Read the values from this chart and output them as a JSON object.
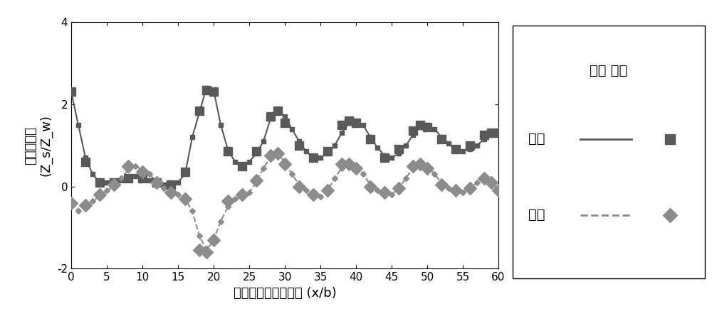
{
  "real_theory_x": [
    0,
    1,
    2,
    3,
    4,
    5,
    6,
    7,
    8,
    9,
    10,
    11,
    12,
    13,
    14,
    15,
    16,
    17,
    18,
    19,
    20,
    21,
    22,
    23,
    24,
    25,
    26,
    27,
    28,
    29,
    30,
    31,
    32,
    33,
    34,
    35,
    36,
    37,
    38,
    39,
    40,
    41,
    42,
    43,
    44,
    45,
    46,
    47,
    48,
    49,
    50,
    51,
    52,
    53,
    54,
    55,
    56,
    57,
    58,
    59,
    60
  ],
  "real_theory_y": [
    2.3,
    1.5,
    0.7,
    0.3,
    0.1,
    0.1,
    0.1,
    0.15,
    0.2,
    0.25,
    0.2,
    0.15,
    0.1,
    0.05,
    0.05,
    0.1,
    0.3,
    1.2,
    1.8,
    2.4,
    2.35,
    1.5,
    0.9,
    0.6,
    0.5,
    0.6,
    0.8,
    1.1,
    1.65,
    1.9,
    1.7,
    1.4,
    1.1,
    0.85,
    0.7,
    0.7,
    0.8,
    1.0,
    1.3,
    1.55,
    1.6,
    1.5,
    1.2,
    0.95,
    0.75,
    0.7,
    0.8,
    1.0,
    1.25,
    1.45,
    1.5,
    1.4,
    1.2,
    1.05,
    0.9,
    0.85,
    0.9,
    1.0,
    1.15,
    1.25,
    1.3
  ],
  "real_unit_x": [
    0,
    2,
    4,
    6,
    8,
    10,
    12,
    14,
    16,
    18,
    19,
    20,
    22,
    24,
    26,
    28,
    29,
    30,
    32,
    34,
    36,
    38,
    39,
    40,
    42,
    44,
    46,
    48,
    49,
    50,
    52,
    54,
    56,
    58,
    59,
    60
  ],
  "real_unit_y": [
    2.3,
    0.6,
    0.1,
    0.1,
    0.2,
    0.2,
    0.1,
    0.05,
    0.35,
    1.85,
    2.35,
    2.3,
    0.85,
    0.5,
    0.85,
    1.7,
    1.85,
    1.55,
    1.0,
    0.7,
    0.85,
    1.5,
    1.6,
    1.55,
    1.15,
    0.7,
    0.9,
    1.35,
    1.5,
    1.45,
    1.15,
    0.9,
    1.0,
    1.25,
    1.3,
    1.3
  ],
  "imag_theory_x": [
    0,
    1,
    2,
    3,
    4,
    5,
    6,
    7,
    8,
    9,
    10,
    11,
    12,
    13,
    14,
    15,
    16,
    17,
    18,
    19,
    20,
    21,
    22,
    23,
    24,
    25,
    26,
    27,
    28,
    29,
    30,
    31,
    32,
    33,
    34,
    35,
    36,
    37,
    38,
    39,
    40,
    41,
    42,
    43,
    44,
    45,
    46,
    47,
    48,
    49,
    50,
    51,
    52,
    53,
    54,
    55,
    56,
    57,
    58,
    59,
    60
  ],
  "imag_theory_y": [
    -0.4,
    -0.6,
    -0.5,
    -0.35,
    -0.25,
    -0.1,
    0.0,
    0.2,
    0.4,
    0.5,
    0.4,
    0.3,
    0.1,
    -0.05,
    -0.15,
    -0.2,
    -0.3,
    -0.6,
    -1.2,
    -1.55,
    -1.3,
    -0.85,
    -0.5,
    -0.3,
    -0.25,
    -0.15,
    0.1,
    0.45,
    0.7,
    0.8,
    0.6,
    0.3,
    0.05,
    -0.1,
    -0.2,
    -0.25,
    -0.1,
    0.2,
    0.45,
    0.55,
    0.5,
    0.3,
    0.05,
    -0.1,
    -0.15,
    -0.2,
    -0.05,
    0.2,
    0.45,
    0.55,
    0.5,
    0.3,
    0.1,
    -0.05,
    -0.1,
    -0.15,
    -0.05,
    0.1,
    0.2,
    0.1,
    -0.1
  ],
  "imag_unit_x": [
    0,
    2,
    4,
    6,
    8,
    10,
    12,
    14,
    16,
    18,
    19,
    20,
    22,
    24,
    26,
    28,
    29,
    30,
    32,
    34,
    36,
    38,
    39,
    40,
    42,
    44,
    46,
    48,
    49,
    50,
    52,
    54,
    56,
    58,
    59,
    60
  ],
  "imag_unit_y": [
    -0.4,
    -0.45,
    -0.2,
    0.05,
    0.5,
    0.35,
    0.1,
    -0.15,
    -0.3,
    -1.55,
    -1.6,
    -1.3,
    -0.35,
    -0.2,
    0.15,
    0.75,
    0.8,
    0.55,
    0.0,
    -0.2,
    -0.1,
    0.55,
    0.55,
    0.45,
    0.0,
    -0.15,
    -0.05,
    0.5,
    0.55,
    0.45,
    0.05,
    -0.1,
    -0.05,
    0.2,
    0.1,
    -0.1
  ],
  "dark_color": "#595959",
  "light_color": "#8c8c8c",
  "xlabel": "超表面单元中心位置 (x/b)",
  "ylabel_top": "声表面阻抗",
  "ylabel_bottom": "(Z_s/Z_w)",
  "ylim": [
    -2,
    4
  ],
  "xlim": [
    0,
    60
  ],
  "xticks": [
    0,
    5,
    10,
    15,
    20,
    25,
    30,
    35,
    40,
    45,
    50,
    55,
    60
  ],
  "yticks": [
    -2,
    0,
    2,
    4
  ],
  "legend_title": "理论 单元",
  "legend_real": "实部",
  "legend_imag": "虚部",
  "bg_color": "#ffffff",
  "tick_fontsize": 11,
  "label_fontsize": 13,
  "legend_fontsize": 14
}
